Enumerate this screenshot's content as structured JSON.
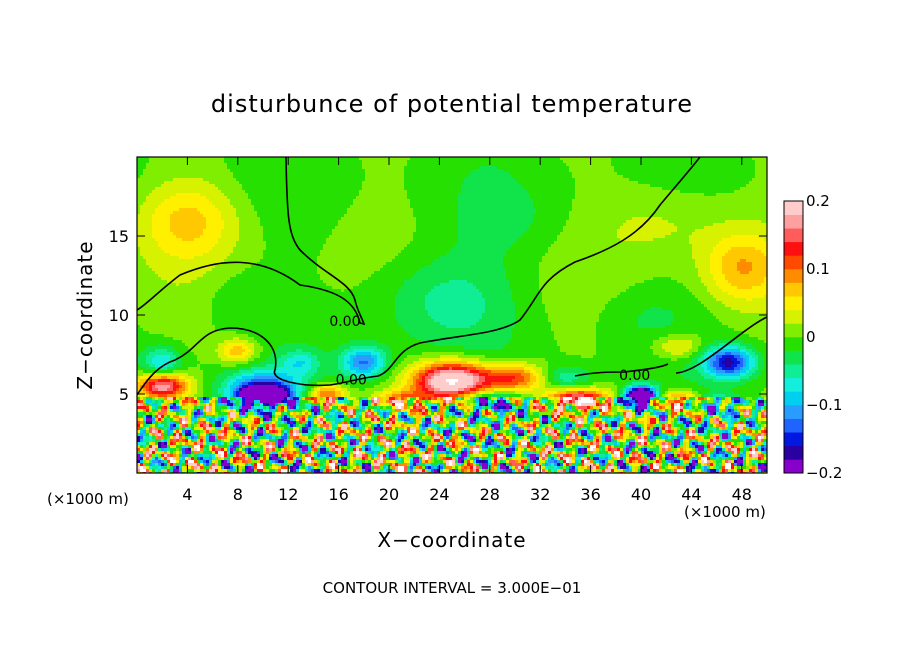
{
  "chart_data": {
    "type": "heatmap",
    "title": "disturbunce of potential temperature",
    "xlabel": "X−coordinate",
    "ylabel": "Z−coordinate",
    "x_unit_left": "(×1000 m)",
    "x_unit_right": "(×1000 m)",
    "footer": "CONTOUR INTERVAL = 3.000E−01",
    "xlim": [
      0,
      50
    ],
    "ylim": [
      0,
      20
    ],
    "x_ticks": [
      {
        "value": 4,
        "label": "4"
      },
      {
        "value": 8,
        "label": "8"
      },
      {
        "value": 12,
        "label": "12"
      },
      {
        "value": 16,
        "label": "16"
      },
      {
        "value": 20,
        "label": "20"
      },
      {
        "value": 24,
        "label": "24"
      },
      {
        "value": 28,
        "label": "28"
      },
      {
        "value": 32,
        "label": "32"
      },
      {
        "value": 36,
        "label": "36"
      },
      {
        "value": 40,
        "label": "40"
      },
      {
        "value": 44,
        "label": "44"
      },
      {
        "value": 48,
        "label": "48"
      }
    ],
    "y_ticks": [
      {
        "value": 5,
        "label": "5"
      },
      {
        "value": 10,
        "label": "10"
      },
      {
        "value": 15,
        "label": "15"
      }
    ],
    "colorbar": {
      "range": [
        -0.2,
        0.2
      ],
      "ticks": [
        {
          "value": 0.2,
          "label": "0.2"
        },
        {
          "value": 0.1,
          "label": "0.1"
        },
        {
          "value": 0,
          "label": "0"
        },
        {
          "value": -0.1,
          "label": "−0.1"
        },
        {
          "value": -0.2,
          "label": "−0.2"
        }
      ],
      "colors": [
        "#8800cc",
        "#2a00a0",
        "#0018e0",
        "#1f64ff",
        "#2a9cff",
        "#00cff0",
        "#14eedc",
        "#10ee95",
        "#10e44a",
        "#25e000",
        "#80ee00",
        "#d7f200",
        "#fff000",
        "#ffc800",
        "#ff8c00",
        "#ff4a00",
        "#ff1010",
        "#ff5c5c",
        "#ffa0a0",
        "#ffcccc"
      ]
    },
    "contour_labels": [
      {
        "x": 16.5,
        "y": 9.3,
        "text": "0.00"
      },
      {
        "x": 17.0,
        "y": 5.6,
        "text": "0.00"
      },
      {
        "x": 39.5,
        "y": 5.9,
        "text": "0.00"
      }
    ],
    "features": [
      {
        "x": 24,
        "y": 11,
        "value": -0.05,
        "sx": 6,
        "sy": 3
      },
      {
        "x": 4,
        "y": 16,
        "value": 0.06,
        "sx": 4,
        "sy": 2.5
      },
      {
        "x": 48,
        "y": 13,
        "value": 0.07,
        "sx": 3,
        "sy": 2.2
      },
      {
        "x": 42,
        "y": 16,
        "value": 0.03,
        "sx": 5,
        "sy": 2.5
      },
      {
        "x": 30,
        "y": 16,
        "value": -0.02,
        "sx": 5,
        "sy": 2.5
      },
      {
        "x": 8,
        "y": 11,
        "value": -0.02,
        "sx": 3,
        "sy": 2
      },
      {
        "x": 40,
        "y": 10,
        "value": -0.02,
        "sx": 4,
        "sy": 2
      },
      {
        "x": 8,
        "y": 7.7,
        "value": 0.08,
        "sx": 1.5,
        "sy": 0.8
      },
      {
        "x": 2,
        "y": 7,
        "value": -0.08,
        "sx": 1.5,
        "sy": 1
      },
      {
        "x": 13,
        "y": 7,
        "value": -0.06,
        "sx": 1.5,
        "sy": 0.8
      },
      {
        "x": 18,
        "y": 7,
        "value": -0.12,
        "sx": 1.8,
        "sy": 1
      },
      {
        "x": 25,
        "y": 5.8,
        "value": 0.25,
        "sx": 3,
        "sy": 1.2
      },
      {
        "x": 30,
        "y": 6,
        "value": 0.12,
        "sx": 2.5,
        "sy": 0.9
      },
      {
        "x": 34,
        "y": 6,
        "value": -0.06,
        "sx": 2,
        "sy": 0.8
      },
      {
        "x": 43,
        "y": 8,
        "value": 0.06,
        "sx": 2,
        "sy": 0.8
      },
      {
        "x": 47,
        "y": 7,
        "value": -0.16,
        "sx": 2,
        "sy": 1
      },
      {
        "x": 2,
        "y": 5.5,
        "value": 0.18,
        "sx": 2,
        "sy": 0.8
      },
      {
        "x": 10,
        "y": 5.2,
        "value": -0.15,
        "sx": 3,
        "sy": 1.2
      },
      {
        "x": 10,
        "y": 4.9,
        "value": -0.35,
        "sx": 1.5,
        "sy": 0.5
      },
      {
        "x": 15,
        "y": 5,
        "value": 0.12,
        "sx": 1.5,
        "sy": 0.6
      },
      {
        "x": 28,
        "y": 4.4,
        "value": -0.12,
        "sx": 2.5,
        "sy": 0.7
      },
      {
        "x": 21,
        "y": 4.6,
        "value": 0.1,
        "sx": 2,
        "sy": 0.6
      },
      {
        "x": 35,
        "y": 4.6,
        "value": 0.18,
        "sx": 2.5,
        "sy": 0.7
      },
      {
        "x": 40,
        "y": 4.8,
        "value": -0.35,
        "sx": 1.2,
        "sy": 0.6
      },
      {
        "x": 43,
        "y": 4.5,
        "value": 0.15,
        "sx": 1.8,
        "sy": 0.6
      },
      {
        "x": 46,
        "y": 4.3,
        "value": -0.1,
        "sx": 2,
        "sy": 0.6
      }
    ],
    "noise_amplitude": 0.22,
    "noise_layer_top_km": 4.8
  }
}
